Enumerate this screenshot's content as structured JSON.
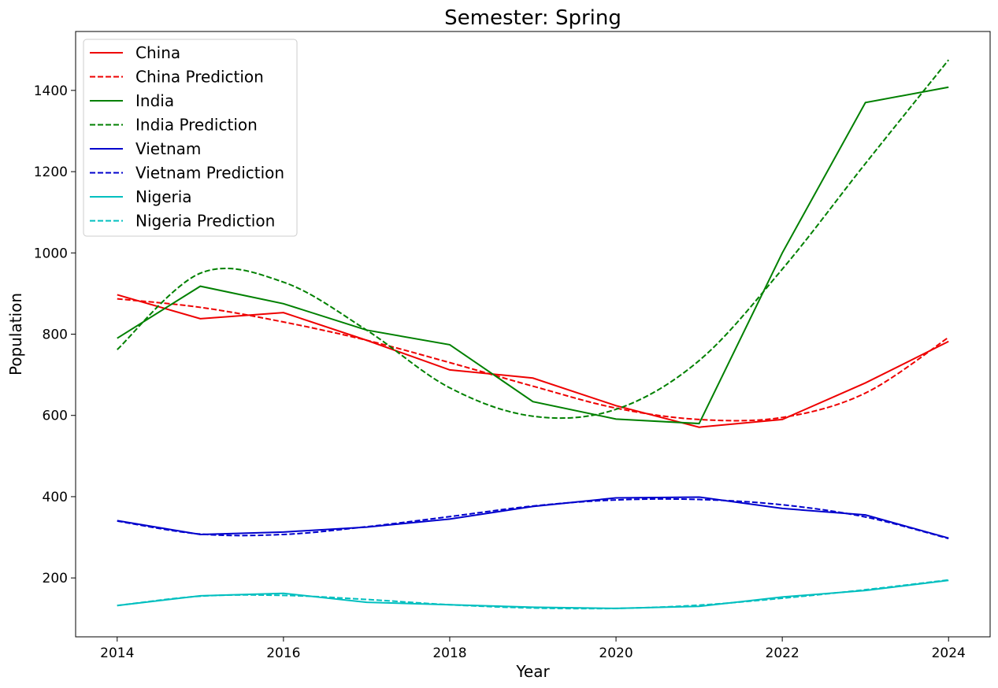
{
  "chart_data": {
    "type": "line",
    "title": "Semester: Spring",
    "xlabel": "Year",
    "ylabel": "Population",
    "xlim": [
      2013.5,
      2024.5
    ],
    "ylim": [
      55,
      1545
    ],
    "x_ticks": [
      "2014",
      "2016",
      "2018",
      "2020",
      "2022",
      "2024"
    ],
    "y_ticks": [
      "200",
      "400",
      "600",
      "800",
      "1000",
      "1200",
      "1400"
    ],
    "x": [
      2014,
      2015,
      2016,
      2017,
      2018,
      2019,
      2020,
      2021,
      2022,
      2023,
      2024
    ],
    "grid": false,
    "legend_position": "top-left",
    "series": [
      {
        "name": "China",
        "style": "solid",
        "color": "#ee0000",
        "values": [
          897,
          838,
          853,
          785,
          712,
          692,
          624,
          571,
          590,
          680,
          782
        ]
      },
      {
        "name": "China Prediction",
        "style": "dashed",
        "color": "#ee0000",
        "values": [
          887,
          866,
          830,
          785,
          730,
          672,
          618,
          590,
          595,
          655,
          792
        ]
      },
      {
        "name": "India",
        "style": "solid",
        "color": "#008000",
        "values": [
          790,
          918,
          875,
          810,
          774,
          634,
          591,
          580,
          1000,
          1370,
          1408
        ]
      },
      {
        "name": "India Prediction",
        "style": "dashed",
        "color": "#008000",
        "values": [
          762,
          950,
          928,
          810,
          668,
          598,
          615,
          735,
          960,
          1220,
          1475
        ]
      },
      {
        "name": "Vietnam",
        "style": "solid",
        "color": "#0000cc",
        "values": [
          341,
          307,
          313,
          325,
          345,
          376,
          397,
          399,
          371,
          355,
          298
        ]
      },
      {
        "name": "Vietnam Prediction",
        "style": "dashed",
        "color": "#0000cc",
        "values": [
          340,
          308,
          307,
          326,
          351,
          377,
          392,
          393,
          380,
          350,
          297
        ]
      },
      {
        "name": "Nigeria",
        "style": "solid",
        "color": "#00bfbf",
        "values": [
          132,
          156,
          162,
          140,
          134,
          128,
          125,
          130,
          153,
          169,
          194
        ]
      },
      {
        "name": "Nigeria Prediction",
        "style": "dashed",
        "color": "#00bfbf",
        "values": [
          132,
          155,
          157,
          147,
          134,
          126,
          125,
          133,
          150,
          171,
          195
        ]
      }
    ]
  }
}
